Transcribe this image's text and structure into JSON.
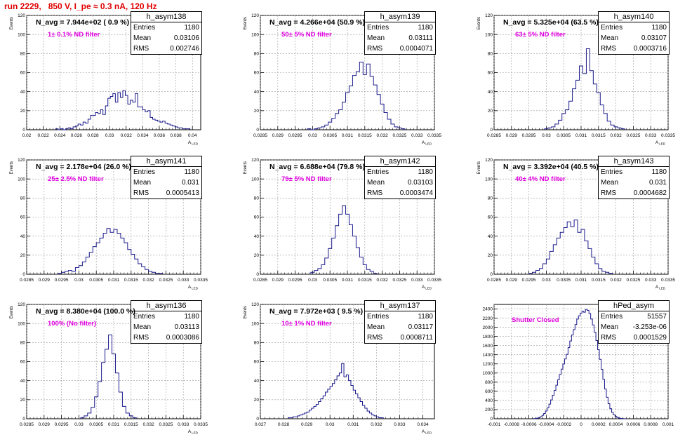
{
  "header": {
    "title": "run 2229,   850 V, I_pe ≈ 0.3 nA, 120 Hz"
  },
  "chart_data": [
    {
      "type": "bar",
      "name": "h_asym138",
      "stats": {
        "entries": "1180",
        "mean": "0.03106",
        "rms": "0.002746"
      },
      "navg_text": "N_avg = 7.944e+02 ( 0.9 %)",
      "filter_text": "1± 0.1% ND filter",
      "xlabel": "A",
      "xlabel_sub": "LED",
      "ylabel": "Events",
      "xlim": [
        0.02,
        0.041
      ],
      "ylim": [
        0,
        120
      ],
      "xticks": [
        0.02,
        0.022,
        0.024,
        0.026,
        0.028,
        0.03,
        0.032,
        0.034,
        0.036,
        0.038,
        0.04
      ],
      "xtick_labels": [
        "0.02",
        "0.022",
        "0.024",
        "0.026",
        "0.028",
        "0.03",
        "0.032",
        "0.034",
        "0.036",
        "0.038",
        "0.04"
      ],
      "yticks": [
        0,
        20,
        40,
        60,
        80,
        100,
        120
      ],
      "ytick_labels": [
        "0",
        "20",
        "40",
        "60",
        "80",
        "100",
        "120"
      ],
      "bins": {
        "start": 0.0235,
        "width": 0.0003,
        "values": [
          1,
          0,
          1,
          0,
          1,
          2,
          1,
          3,
          4,
          6,
          5,
          8,
          7,
          11,
          15,
          15,
          18,
          17,
          21,
          16,
          25,
          33,
          35,
          38,
          29,
          39,
          34,
          41,
          36,
          27,
          31,
          29,
          38,
          24,
          24,
          21,
          19,
          20,
          13,
          11,
          10,
          9,
          8,
          9,
          7,
          6,
          5,
          4,
          3,
          2,
          2,
          1,
          1,
          1
        ]
      },
      "grid": true
    },
    {
      "type": "bar",
      "name": "h_asym139",
      "stats": {
        "entries": "1180",
        "mean": "0.03111",
        "rms": "0.0004071"
      },
      "navg_text": "N_avg = 4.266e+04 (50.9 %)",
      "filter_text": "50± 5% ND filter",
      "xlabel": "A",
      "xlabel_sub": "LED",
      "ylabel": "Events",
      "xlim": [
        0.0285,
        0.0335
      ],
      "ylim": [
        0,
        120
      ],
      "xticks": [
        0.0285,
        0.029,
        0.0295,
        0.03,
        0.0305,
        0.031,
        0.0315,
        0.032,
        0.0325,
        0.033,
        0.0335
      ],
      "xtick_labels": [
        "0.0285",
        "0.029",
        "0.0295",
        "0.03",
        "0.0305",
        "0.031",
        "0.0315",
        "0.032",
        "0.0325",
        "0.033",
        "0.0335"
      ],
      "yticks": [
        0,
        20,
        40,
        60,
        80,
        100,
        120
      ],
      "ytick_labels": [
        "0",
        "20",
        "40",
        "60",
        "80",
        "100",
        "120"
      ],
      "bins": {
        "start": 0.02985,
        "width": 0.0001,
        "values": [
          1,
          0,
          1,
          2,
          3,
          5,
          8,
          12,
          17,
          21,
          29,
          39,
          46,
          57,
          61,
          71,
          58,
          69,
          56,
          47,
          37,
          27,
          18,
          11,
          6,
          3,
          2,
          1
        ]
      },
      "grid": true
    },
    {
      "type": "bar",
      "name": "h_asym140",
      "stats": {
        "entries": "1180",
        "mean": "0.03107",
        "rms": "0.0003716"
      },
      "navg_text": "N_avg = 5.325e+04 (63.5 %)",
      "filter_text": "63± 5% ND filter",
      "xlabel": "A",
      "xlabel_sub": "LED",
      "ylabel": "Events",
      "xlim": [
        0.0285,
        0.0335
      ],
      "ylim": [
        0,
        120
      ],
      "xticks": [
        0.0285,
        0.029,
        0.0295,
        0.03,
        0.0305,
        0.031,
        0.0315,
        0.032,
        0.0325,
        0.033,
        0.0335
      ],
      "xtick_labels": [
        "0.0285",
        "0.029",
        "0.0295",
        "0.03",
        "0.0305",
        "0.031",
        "0.0315",
        "0.032",
        "0.0325",
        "0.033",
        "0.0335"
      ],
      "yticks": [
        0,
        20,
        40,
        60,
        80,
        100,
        120
      ],
      "ytick_labels": [
        "0",
        "20",
        "40",
        "60",
        "80",
        "100",
        "120"
      ],
      "bins": {
        "start": 0.02995,
        "width": 0.0001,
        "values": [
          1,
          2,
          3,
          6,
          10,
          17,
          21,
          30,
          43,
          52,
          67,
          59,
          85,
          62,
          48,
          39,
          26,
          17,
          9,
          5,
          3,
          2,
          1
        ]
      },
      "grid": true
    },
    {
      "type": "bar",
      "name": "h_asym141",
      "stats": {
        "entries": "1180",
        "mean": "0.031",
        "rms": "0.0005413"
      },
      "navg_text": "N_avg = 2.178e+04 (26.0 %)",
      "filter_text": "25± 2.5% ND filter",
      "xlabel": "A",
      "xlabel_sub": "LED",
      "ylabel": "Events",
      "xlim": [
        0.0285,
        0.0335
      ],
      "ylim": [
        0,
        120
      ],
      "xticks": [
        0.0285,
        0.029,
        0.0295,
        0.03,
        0.0305,
        0.031,
        0.0315,
        0.032,
        0.0325,
        0.033,
        0.0335
      ],
      "xtick_labels": [
        "0.0285",
        "0.029",
        "0.0295",
        "0.03",
        "0.0305",
        "0.031",
        "0.0315",
        "0.032",
        "0.0325",
        "0.033",
        "0.0335"
      ],
      "yticks": [
        0,
        20,
        40,
        60,
        80,
        100,
        120
      ],
      "ytick_labels": [
        "0",
        "20",
        "40",
        "60",
        "80",
        "100",
        "120"
      ],
      "bins": {
        "start": 0.0294,
        "width": 0.0001,
        "values": [
          1,
          2,
          3,
          4,
          3,
          7,
          9,
          13,
          18,
          23,
          29,
          33,
          38,
          43,
          48,
          44,
          47,
          43,
          38,
          33,
          26,
          21,
          16,
          11,
          8,
          5,
          3,
          2,
          1,
          1
        ]
      },
      "grid": true
    },
    {
      "type": "bar",
      "name": "h_asym142",
      "stats": {
        "entries": "1180",
        "mean": "0.03103",
        "rms": "0.0003474"
      },
      "navg_text": "N_avg = 6.688e+04 (79.8 %)",
      "filter_text": "79± 5% ND filter",
      "xlabel": "A",
      "xlabel_sub": "LED",
      "ylabel": "Events",
      "xlim": [
        0.0285,
        0.0335
      ],
      "ylim": [
        0,
        120
      ],
      "xticks": [
        0.0285,
        0.029,
        0.0295,
        0.03,
        0.0305,
        0.031,
        0.0315,
        0.032,
        0.0325,
        0.033,
        0.0335
      ],
      "xtick_labels": [
        "0.0285",
        "0.029",
        "0.0295",
        "0.03",
        "0.0305",
        "0.031",
        "0.0315",
        "0.032",
        "0.0325",
        "0.033",
        "0.0335"
      ],
      "yticks": [
        0,
        20,
        40,
        60,
        80,
        100,
        120
      ],
      "ytick_labels": [
        "0",
        "20",
        "40",
        "60",
        "80",
        "100",
        "120"
      ],
      "bins": {
        "start": 0.02995,
        "width": 0.0001,
        "values": [
          2,
          4,
          6,
          10,
          17,
          27,
          38,
          51,
          63,
          72,
          63,
          52,
          40,
          28,
          18,
          10,
          5,
          3,
          1
        ]
      },
      "grid": true
    },
    {
      "type": "bar",
      "name": "h_asym143",
      "stats": {
        "entries": "1180",
        "mean": "0.031",
        "rms": "0.0004682"
      },
      "navg_text": "N_avg = 3.392e+04 (40.5 %)",
      "filter_text": "40± 4% ND filter",
      "xlabel": "A",
      "xlabel_sub": "LED",
      "ylabel": "Events",
      "xlim": [
        0.0285,
        0.0335
      ],
      "ylim": [
        0,
        120
      ],
      "xticks": [
        0.0285,
        0.029,
        0.0295,
        0.03,
        0.0305,
        0.031,
        0.0315,
        0.032,
        0.0325,
        0.033,
        0.0335
      ],
      "xtick_labels": [
        "0.0285",
        "0.029",
        "0.0295",
        "0.03",
        "0.0305",
        "0.031",
        "0.0315",
        "0.032",
        "0.0325",
        "0.033",
        "0.0335"
      ],
      "yticks": [
        0,
        20,
        40,
        60,
        80,
        100,
        120
      ],
      "ytick_labels": [
        "0",
        "20",
        "40",
        "60",
        "80",
        "100",
        "120"
      ],
      "bins": {
        "start": 0.0295,
        "width": 0.0001,
        "values": [
          1,
          2,
          4,
          6,
          11,
          16,
          24,
          31,
          38,
          44,
          49,
          55,
          50,
          57,
          44,
          47,
          35,
          27,
          18,
          11,
          6,
          3,
          2,
          1
        ]
      },
      "grid": true
    },
    {
      "type": "bar",
      "name": "h_asym136",
      "stats": {
        "entries": "1180",
        "mean": "0.03113",
        "rms": "0.0003086"
      },
      "navg_text": "N_avg = 8.380e+04 (100.0 %)",
      "filter_text": "100% (No filter)",
      "xlabel": "A",
      "xlabel_sub": "LED",
      "ylabel": "Events",
      "xlim": [
        0.0285,
        0.0335
      ],
      "ylim": [
        0,
        120
      ],
      "xticks": [
        0.0285,
        0.029,
        0.0295,
        0.03,
        0.0305,
        0.031,
        0.0315,
        0.032,
        0.0325,
        0.033,
        0.0335
      ],
      "xtick_labels": [
        "0.0285",
        "0.029",
        "0.0295",
        "0.03",
        "0.0305",
        "0.031",
        "0.0315",
        "0.032",
        "0.0325",
        "0.033",
        "0.0335"
      ],
      "yticks": [
        0,
        20,
        40,
        60,
        80,
        100,
        120
      ],
      "ytick_labels": [
        "0",
        "20",
        "40",
        "60",
        "80",
        "100",
        "120"
      ],
      "bins": {
        "start": 0.03005,
        "width": 0.0001,
        "values": [
          1,
          3,
          6,
          12,
          23,
          39,
          59,
          73,
          88,
          68,
          48,
          28,
          13,
          6,
          3,
          1
        ]
      },
      "grid": true
    },
    {
      "type": "bar",
      "name": "h_asym137",
      "stats": {
        "entries": "1180",
        "mean": "0.03117",
        "rms": "0.0008711"
      },
      "navg_text": "N_avg = 7.972e+03 ( 9.5 %)",
      "filter_text": "10± 1% ND filter",
      "xlabel": "A",
      "xlabel_sub": "LED",
      "ylabel": "Events",
      "xlim": [
        0.027,
        0.0345
      ],
      "ylim": [
        0,
        120
      ],
      "xticks": [
        0.027,
        0.028,
        0.029,
        0.03,
        0.031,
        0.032,
        0.033,
        0.034
      ],
      "xtick_labels": [
        "0.027",
        "0.028",
        "0.029",
        "0.03",
        "0.031",
        "0.032",
        "0.033",
        "0.034"
      ],
      "yticks": [
        0,
        20,
        40,
        60,
        80,
        100,
        120
      ],
      "ytick_labels": [
        "0",
        "20",
        "40",
        "60",
        "80",
        "100",
        "120"
      ],
      "bins": {
        "start": 0.0282,
        "width": 0.0001,
        "values": [
          1,
          1,
          2,
          2,
          3,
          4,
          5,
          6,
          7,
          9,
          11,
          13,
          15,
          18,
          21,
          24,
          28,
          31,
          34,
          37,
          41,
          45,
          48,
          58,
          44,
          46,
          40,
          35,
          30,
          26,
          22,
          18,
          14,
          11,
          8,
          6,
          4,
          3,
          2,
          1,
          1
        ]
      },
      "grid": true
    },
    {
      "type": "bar",
      "name": "hPed_asym",
      "stats": {
        "entries": "51557",
        "mean": "-3.253e-06",
        "rms": "0.0001529"
      },
      "navg_text": "",
      "filter_text": "Shutter Closed",
      "xlabel": "",
      "xlabel_sub": "",
      "ylabel": "",
      "xlim": [
        -0.001,
        0.001
      ],
      "ylim": [
        0,
        2500
      ],
      "xticks": [
        -0.001,
        -0.0008,
        -0.0006,
        -0.0004,
        -0.0002,
        0,
        0.0002,
        0.0004,
        0.0006,
        0.0008,
        0.001
      ],
      "xtick_labels": [
        "-0.001",
        "-0.0008",
        "-0.0006",
        "-0.0004",
        "-0.0002",
        "0",
        "0.0002",
        "0.0004",
        "0.0006",
        "0.0008",
        "0.001"
      ],
      "yticks": [
        0,
        200,
        400,
        600,
        800,
        1000,
        1200,
        1400,
        1600,
        1800,
        2000,
        2200,
        2400
      ],
      "ytick_labels": [
        "0",
        "200",
        "400",
        "600",
        "800",
        "1000",
        "1200",
        "1400",
        "1600",
        "1800",
        "2000",
        "2200",
        "2400"
      ],
      "bins": {
        "start": -0.00055,
        "width": 2e-05,
        "values": [
          3,
          6,
          13,
          25,
          44,
          74,
          115,
          170,
          238,
          320,
          412,
          513,
          622,
          735,
          853,
          968,
          1085,
          1198,
          1308,
          1410,
          1556,
          1700,
          1830,
          1950,
          2060,
          2180,
          2250,
          2310,
          2350,
          2330,
          2390,
          2370,
          2300,
          2180,
          2050,
          1890,
          1710,
          1510,
          1300,
          1080,
          860,
          650,
          470,
          330,
          220,
          140,
          85,
          50,
          28,
          14,
          7,
          3,
          1
        ]
      },
      "grid": true
    }
  ]
}
